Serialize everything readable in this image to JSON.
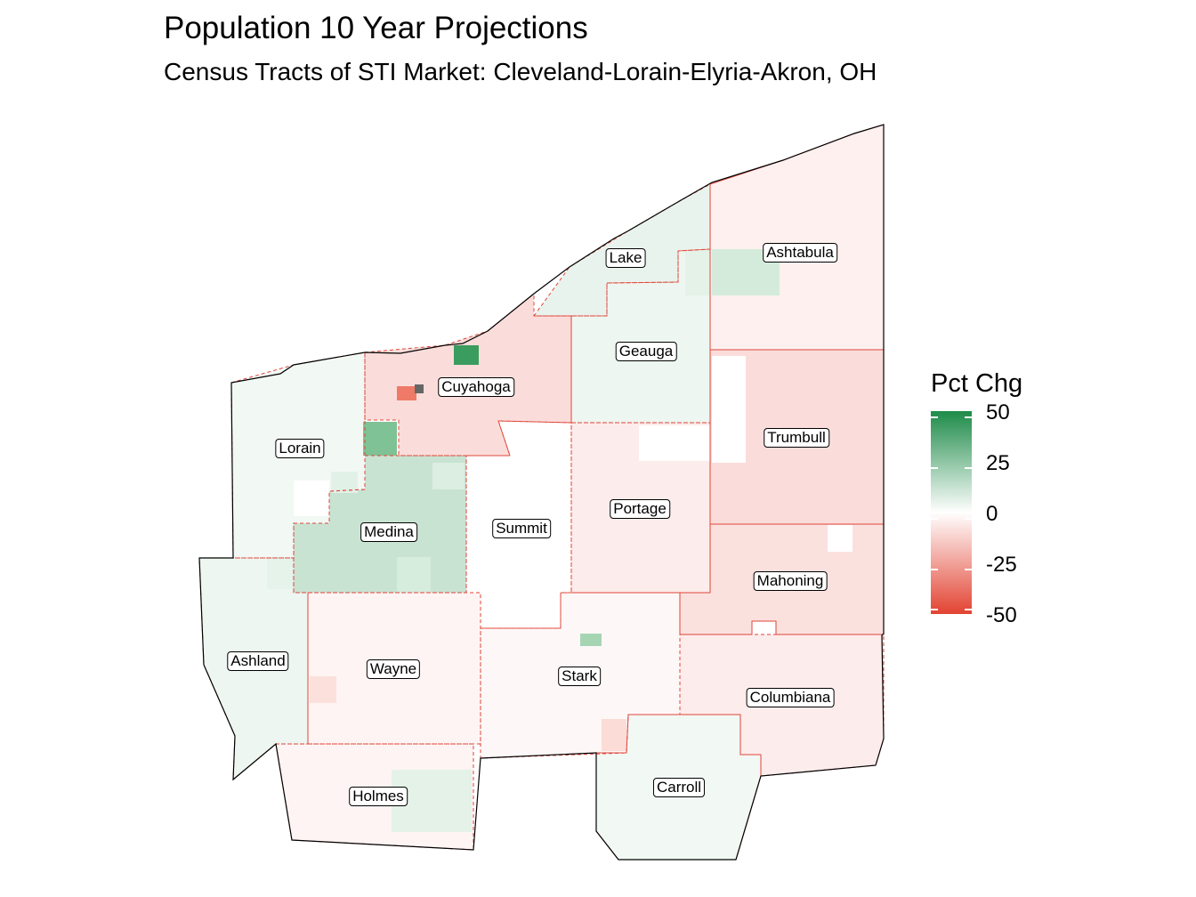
{
  "title": "Population 10 Year Projections",
  "subtitle": "Census Tracts of STI Market: Cleveland-Lorain-Elyria-Akron, OH",
  "legend": {
    "title": "Pct Chg",
    "ticks": [
      "50",
      "25",
      "0",
      "-25",
      "-50"
    ],
    "colors": {
      "high": "#1e8b49",
      "mid": "#ffffff",
      "low": "#e24332"
    }
  },
  "counties": [
    {
      "name": "Lake",
      "tint": 5
    },
    {
      "name": "Ashtabula",
      "tint": -4
    },
    {
      "name": "Geauga",
      "tint": 4
    },
    {
      "name": "Cuyahoga",
      "tint": -9
    },
    {
      "name": "Lorain",
      "tint": 3
    },
    {
      "name": "Trumbull",
      "tint": -9
    },
    {
      "name": "Medina",
      "tint": 12
    },
    {
      "name": "Summit",
      "tint": 0
    },
    {
      "name": "Portage",
      "tint": -5
    },
    {
      "name": "Mahoning",
      "tint": -8
    },
    {
      "name": "Ashland",
      "tint": 4
    },
    {
      "name": "Wayne",
      "tint": -3
    },
    {
      "name": "Stark",
      "tint": -2
    },
    {
      "name": "Columbiana",
      "tint": -5
    },
    {
      "name": "Carroll",
      "tint": 3
    },
    {
      "name": "Holmes",
      "tint": -3
    }
  ]
}
